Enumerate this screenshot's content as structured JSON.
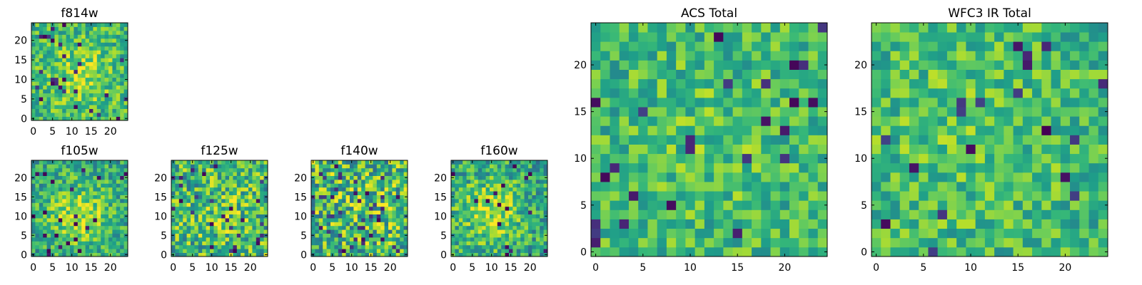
{
  "chart_data": [
    {
      "type": "heatmap",
      "id": "f814w",
      "title": "f814w",
      "colormap": "viridis",
      "grid_size": [
        25,
        25
      ],
      "xlim": [
        -0.5,
        24.5
      ],
      "ylim": [
        -0.5,
        24.5
      ],
      "xticks": [
        0,
        5,
        10,
        15,
        20
      ],
      "yticks": [
        0,
        5,
        10,
        15,
        20
      ],
      "pattern": {
        "kind": "noise",
        "seed": 11,
        "amplitude": 0.22,
        "peak": 0.35,
        "radius": 6,
        "center": [
          12,
          11
        ],
        "dark_fraction": 0.04
      }
    },
    {
      "type": "heatmap",
      "id": "f105w",
      "title": "f105w",
      "colormap": "viridis",
      "grid_size": [
        25,
        25
      ],
      "xlim": [
        -0.5,
        24.5
      ],
      "ylim": [
        -0.5,
        24.5
      ],
      "xticks": [
        0,
        5,
        10,
        15,
        20
      ],
      "yticks": [
        0,
        5,
        10,
        15,
        20
      ],
      "pattern": {
        "kind": "source",
        "seed": 23,
        "amplitude": 0.22,
        "peak": 0.55,
        "radius": 6,
        "center": [
          12,
          10
        ],
        "dark_fraction": 0.03
      }
    },
    {
      "type": "heatmap",
      "id": "f125w",
      "title": "f125w",
      "colormap": "viridis",
      "grid_size": [
        25,
        25
      ],
      "xlim": [
        -0.5,
        24.5
      ],
      "ylim": [
        -0.5,
        24.5
      ],
      "xticks": [
        0,
        5,
        10,
        15,
        20
      ],
      "yticks": [
        0,
        5,
        10,
        15,
        20
      ],
      "pattern": {
        "kind": "noise",
        "seed": 37,
        "amplitude": 0.3,
        "peak": 0.2,
        "radius": 5,
        "center": [
          13,
          11
        ],
        "dark_fraction": 0.03
      }
    },
    {
      "type": "heatmap",
      "id": "f140w",
      "title": "f140w",
      "colormap": "viridis",
      "grid_size": [
        25,
        25
      ],
      "xlim": [
        -0.5,
        24.5
      ],
      "ylim": [
        -0.5,
        24.5
      ],
      "xticks": [
        0,
        5,
        10,
        15,
        20
      ],
      "yticks": [
        0,
        5,
        10,
        15,
        20
      ],
      "pattern": {
        "kind": "noise",
        "seed": 51,
        "amplitude": 0.34,
        "peak": 0.1,
        "radius": 5,
        "center": [
          12,
          12
        ],
        "dark_fraction": 0.05
      }
    },
    {
      "type": "heatmap",
      "id": "f160w",
      "title": "f160w",
      "colormap": "viridis",
      "grid_size": [
        25,
        25
      ],
      "xlim": [
        -0.5,
        24.5
      ],
      "ylim": [
        -0.5,
        24.5
      ],
      "xticks": [
        0,
        5,
        10,
        15,
        20
      ],
      "yticks": [
        0,
        5,
        10,
        15,
        20
      ],
      "pattern": {
        "kind": "source",
        "seed": 67,
        "amplitude": 0.24,
        "peak": 0.55,
        "radius": 6,
        "center": [
          10,
          11
        ],
        "dark_fraction": 0.03
      }
    },
    {
      "type": "heatmap",
      "id": "acs-total",
      "title": "ACS Total",
      "colormap": "viridis",
      "grid_size": [
        25,
        25
      ],
      "xlim": [
        -0.5,
        24.5
      ],
      "ylim": [
        -0.5,
        24.5
      ],
      "xticks": [
        0,
        5,
        10,
        15,
        20
      ],
      "yticks": [
        0,
        5,
        10,
        15,
        20
      ],
      "pattern": {
        "kind": "noise",
        "seed": 83,
        "amplitude": 0.2,
        "peak": 0.12,
        "radius": 6,
        "center": [
          12,
          12
        ],
        "dark_fraction": 0.04
      }
    },
    {
      "type": "heatmap",
      "id": "wfc3-ir-total",
      "title": "WFC3 IR Total",
      "colormap": "viridis",
      "grid_size": [
        25,
        25
      ],
      "xlim": [
        -0.5,
        24.5
      ],
      "ylim": [
        -0.5,
        24.5
      ],
      "xticks": [
        0,
        5,
        10,
        15,
        20
      ],
      "yticks": [
        0,
        5,
        10,
        15,
        20
      ],
      "pattern": {
        "kind": "noise",
        "seed": 97,
        "amplitude": 0.2,
        "peak": 0.15,
        "radius": 7,
        "center": [
          10,
          13
        ],
        "dark_fraction": 0.03
      }
    }
  ]
}
